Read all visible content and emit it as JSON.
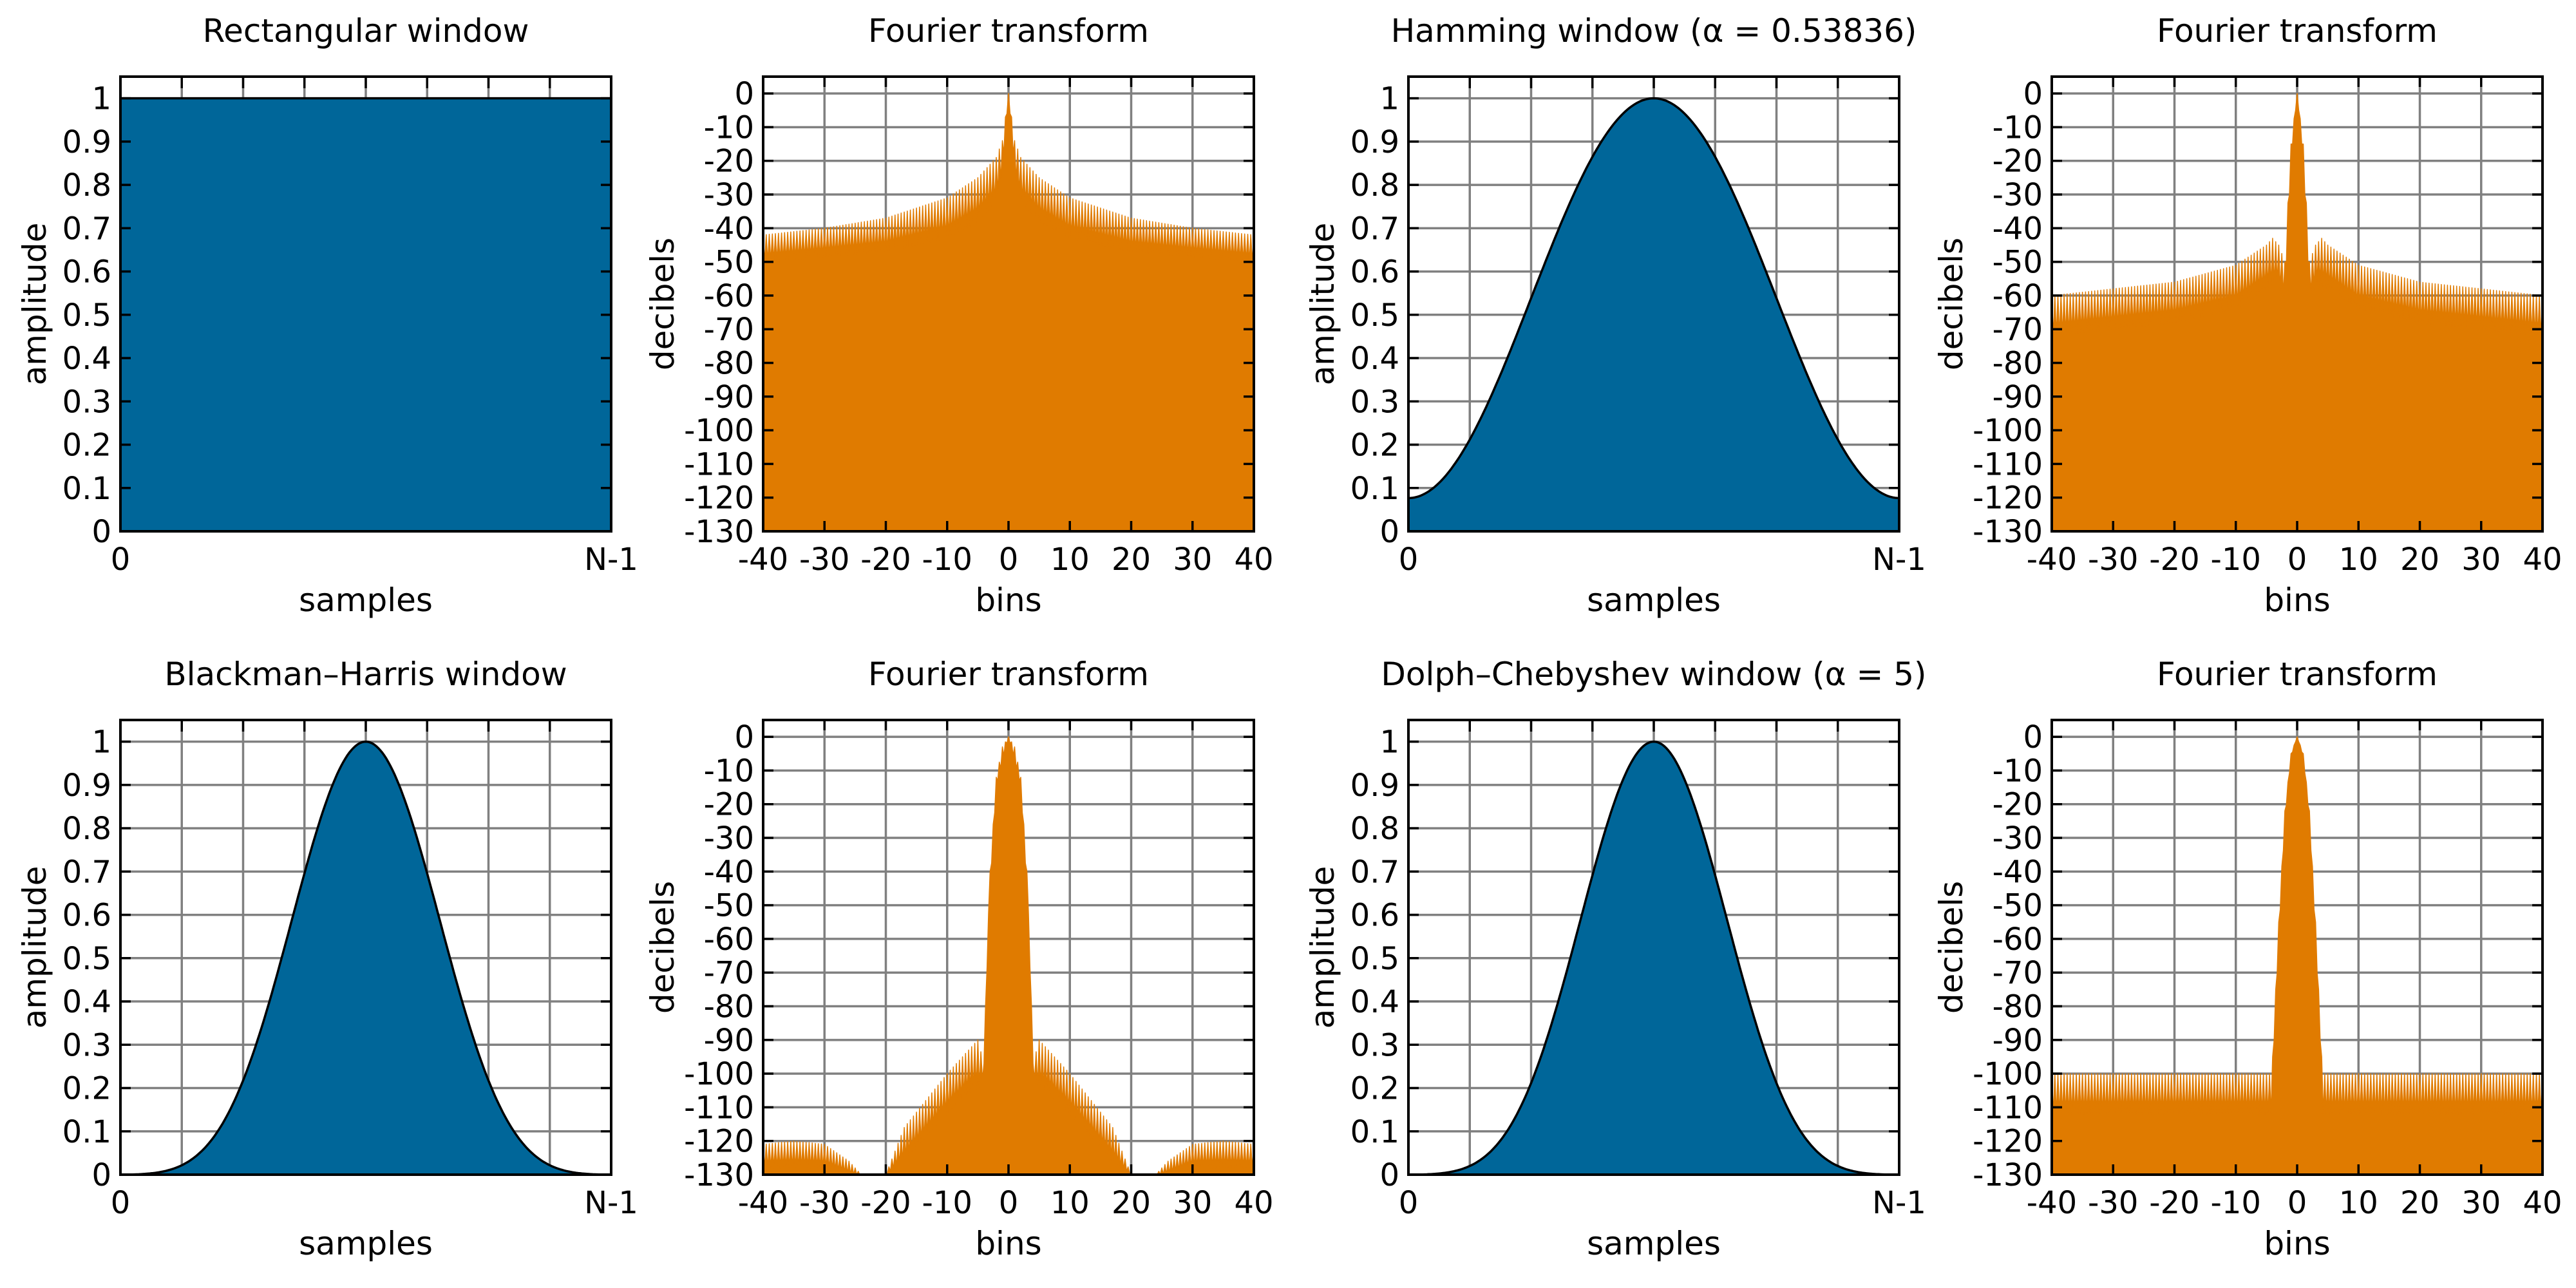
{
  "colors": {
    "window": "#006699",
    "spectrum": "#e07b00",
    "grid": "#808080",
    "axis": "#000000",
    "background": "#ffffff"
  },
  "chart_data": [
    {
      "type": "area",
      "kind": "window",
      "shape": "rectangular",
      "title": "Rectangular window",
      "xlabel": "samples",
      "ylabel": "amplitude",
      "xticks": [
        "0",
        "N-1"
      ],
      "yticks": [
        "0",
        "0.1",
        "0.2",
        "0.3",
        "0.4",
        "0.5",
        "0.6",
        "0.7",
        "0.8",
        "0.9",
        "1"
      ],
      "xlim": [
        0,
        1
      ],
      "ylim": [
        0,
        1.05
      ],
      "grid": true,
      "x": [
        0,
        0.125,
        0.25,
        0.375,
        0.5,
        0.625,
        0.75,
        0.875,
        1
      ],
      "y": [
        1,
        1,
        1,
        1,
        1,
        1,
        1,
        1,
        1
      ]
    },
    {
      "type": "area",
      "kind": "spectrum",
      "title": "Fourier transform",
      "xlabel": "bins",
      "ylabel": "decibels",
      "xticks": [
        "-40",
        "-30",
        "-20",
        "-10",
        "0",
        "10",
        "20",
        "30",
        "40"
      ],
      "yticks": [
        "-130",
        "-120",
        "-110",
        "-100",
        "-90",
        "-80",
        "-70",
        "-60",
        "-50",
        "-40",
        "-30",
        "-20",
        "-10",
        "0"
      ],
      "xlim": [
        -40,
        40
      ],
      "ylim": [
        -130,
        5
      ],
      "grid": true,
      "upper_envelope": {
        "x": [
          -40,
          -30,
          -20,
          -10,
          -5,
          -2,
          -1,
          0,
          1,
          2,
          5,
          10,
          20,
          30,
          40
        ],
        "y": [
          -42,
          -40,
          -37,
          -31,
          -25,
          -19,
          -14,
          0,
          -14,
          -19,
          -25,
          -31,
          -37,
          -40,
          -42
        ]
      },
      "lower_envelope": {
        "x": [
          -40,
          -20,
          -10,
          -5,
          -2,
          -1,
          0,
          1,
          2,
          5,
          10,
          20,
          40
        ],
        "y": [
          -50,
          -47,
          -43,
          -38,
          -32,
          -24,
          0,
          -24,
          -32,
          -38,
          -43,
          -47,
          -50
        ]
      }
    },
    {
      "type": "area",
      "kind": "window",
      "shape": "hamming",
      "alpha": 0.53836,
      "title": "Hamming window (α = 0.53836)",
      "xlabel": "samples",
      "ylabel": "amplitude",
      "xticks": [
        "0",
        "N-1"
      ],
      "yticks": [
        "0",
        "0.1",
        "0.2",
        "0.3",
        "0.4",
        "0.5",
        "0.6",
        "0.7",
        "0.8",
        "0.9",
        "1"
      ],
      "xlim": [
        0,
        1
      ],
      "ylim": [
        0,
        1.05
      ],
      "grid": true,
      "x": [
        0,
        0.125,
        0.25,
        0.375,
        0.5,
        0.625,
        0.75,
        0.875,
        1
      ],
      "y": [
        0.077,
        0.215,
        0.54,
        0.865,
        1,
        0.865,
        0.54,
        0.215,
        0.077
      ]
    },
    {
      "type": "area",
      "kind": "spectrum",
      "title": "Fourier transform",
      "xlabel": "bins",
      "ylabel": "decibels",
      "xticks": [
        "-40",
        "-30",
        "-20",
        "-10",
        "0",
        "10",
        "20",
        "30",
        "40"
      ],
      "yticks": [
        "-130",
        "-120",
        "-110",
        "-100",
        "-90",
        "-80",
        "-70",
        "-60",
        "-50",
        "-40",
        "-30",
        "-20",
        "-10",
        "0"
      ],
      "xlim": [
        -40,
        40
      ],
      "ylim": [
        -130,
        5
      ],
      "grid": true,
      "upper_envelope": {
        "x": [
          -40,
          -20,
          -10,
          -5,
          -4,
          -3,
          -2,
          -1,
          0,
          1,
          2,
          3,
          4,
          5,
          10,
          20,
          40
        ],
        "y": [
          -60,
          -56,
          -51,
          -45,
          -43,
          -45,
          -50,
          -15,
          0,
          -15,
          -50,
          -45,
          -43,
          -45,
          -51,
          -56,
          -60
        ]
      },
      "lower_envelope": {
        "x": [
          -40,
          -20,
          -10,
          -5,
          -3,
          -2.5,
          -2,
          -1,
          0,
          1,
          2,
          2.5,
          3,
          5,
          10,
          20,
          40
        ],
        "y": [
          -72,
          -68,
          -64,
          -58,
          -56,
          -60,
          -60,
          -20,
          0,
          -20,
          -60,
          -60,
          -56,
          -58,
          -64,
          -68,
          -72
        ]
      }
    },
    {
      "type": "area",
      "kind": "window",
      "shape": "blackman-harris",
      "title": "Blackman–Harris window",
      "xlabel": "samples",
      "ylabel": "amplitude",
      "xticks": [
        "0",
        "N-1"
      ],
      "yticks": [
        "0",
        "0.1",
        "0.2",
        "0.3",
        "0.4",
        "0.5",
        "0.6",
        "0.7",
        "0.8",
        "0.9",
        "1"
      ],
      "xlim": [
        0,
        1
      ],
      "ylim": [
        0,
        1.05
      ],
      "grid": true,
      "x": [
        0,
        0.125,
        0.25,
        0.375,
        0.5,
        0.625,
        0.75,
        0.875,
        1
      ],
      "y": [
        0,
        0.04,
        0.22,
        0.67,
        1,
        0.67,
        0.22,
        0.04,
        0
      ]
    },
    {
      "type": "area",
      "kind": "spectrum",
      "title": "Fourier transform",
      "xlabel": "bins",
      "ylabel": "decibels",
      "xticks": [
        "-40",
        "-30",
        "-20",
        "-10",
        "0",
        "10",
        "20",
        "30",
        "40"
      ],
      "yticks": [
        "-130",
        "-120",
        "-110",
        "-100",
        "-90",
        "-80",
        "-70",
        "-60",
        "-50",
        "-40",
        "-30",
        "-20",
        "-10",
        "0"
      ],
      "xlim": [
        -40,
        40
      ],
      "ylim": [
        -130,
        5
      ],
      "grid": true,
      "upper_envelope": {
        "x": [
          -40,
          -35,
          -30,
          -26,
          -24,
          -20,
          -17,
          -10,
          -6,
          -5,
          -4,
          -3,
          -2,
          -1,
          0,
          1,
          2,
          3,
          4,
          5,
          6,
          10,
          17,
          20,
          24,
          26,
          30,
          35,
          40
        ],
        "y": [
          -121,
          -120,
          -121,
          -126,
          -130,
          -130,
          -116,
          -100,
          -92,
          -90,
          -97,
          -40,
          -12,
          -3,
          0,
          -3,
          -12,
          -40,
          -97,
          -90,
          -92,
          -100,
          -116,
          -130,
          -130,
          -126,
          -121,
          -120,
          -121
        ]
      },
      "lower_envelope": {
        "x": [
          -40,
          -30,
          -26,
          -20,
          -17,
          -10,
          -6,
          -4.5,
          -4,
          -3.5,
          -2,
          0,
          2,
          3.5,
          4,
          4.5,
          6,
          10,
          17,
          20,
          26,
          30,
          40
        ],
        "y": [
          -128,
          -128,
          -130,
          -130,
          -126,
          -112,
          -105,
          -104,
          -100,
          -60,
          -15,
          0,
          -15,
          -60,
          -100,
          -104,
          -105,
          -112,
          -126,
          -130,
          -130,
          -128,
          -128
        ]
      }
    },
    {
      "type": "area",
      "kind": "window",
      "shape": "dolph-chebyshev",
      "alpha": 5,
      "title": "Dolph–Chebyshev window (α = 5)",
      "xlabel": "samples",
      "ylabel": "amplitude",
      "xticks": [
        "0",
        "N-1"
      ],
      "yticks": [
        "0",
        "0.1",
        "0.2",
        "0.3",
        "0.4",
        "0.5",
        "0.6",
        "0.7",
        "0.8",
        "0.9",
        "1"
      ],
      "xlim": [
        0,
        1
      ],
      "ylim": [
        0,
        1.05
      ],
      "grid": true,
      "x": [
        0,
        0.125,
        0.25,
        0.375,
        0.5,
        0.625,
        0.75,
        0.875,
        1
      ],
      "y": [
        0,
        0.05,
        0.24,
        0.68,
        1,
        0.68,
        0.24,
        0.05,
        0
      ]
    },
    {
      "type": "area",
      "kind": "spectrum",
      "title": "Fourier transform",
      "xlabel": "bins",
      "ylabel": "decibels",
      "xticks": [
        "-40",
        "-30",
        "-20",
        "-10",
        "0",
        "10",
        "20",
        "30",
        "40"
      ],
      "yticks": [
        "-130",
        "-120",
        "-110",
        "-100",
        "-90",
        "-80",
        "-70",
        "-60",
        "-50",
        "-40",
        "-30",
        "-20",
        "-10",
        "0"
      ],
      "xlim": [
        -40,
        40
      ],
      "ylim": [
        -130,
        5
      ],
      "grid": true,
      "upper_envelope": {
        "x": [
          -40,
          -4.2,
          -4,
          -3,
          -2,
          -1,
          0,
          1,
          2,
          3,
          4,
          4.2,
          40
        ],
        "y": [
          -100,
          -100,
          -95,
          -55,
          -22,
          -5,
          0,
          -5,
          -22,
          -55,
          -95,
          -100,
          -100
        ]
      },
      "lower_envelope": {
        "x": [
          -40,
          -4.2,
          -4,
          -3,
          -2,
          -1,
          0,
          1,
          2,
          3,
          4,
          4.2,
          40
        ],
        "y": [
          -112,
          -112,
          -100,
          -60,
          -25,
          -6,
          0,
          -6,
          -25,
          -60,
          -100,
          -112,
          -112
        ]
      }
    }
  ]
}
